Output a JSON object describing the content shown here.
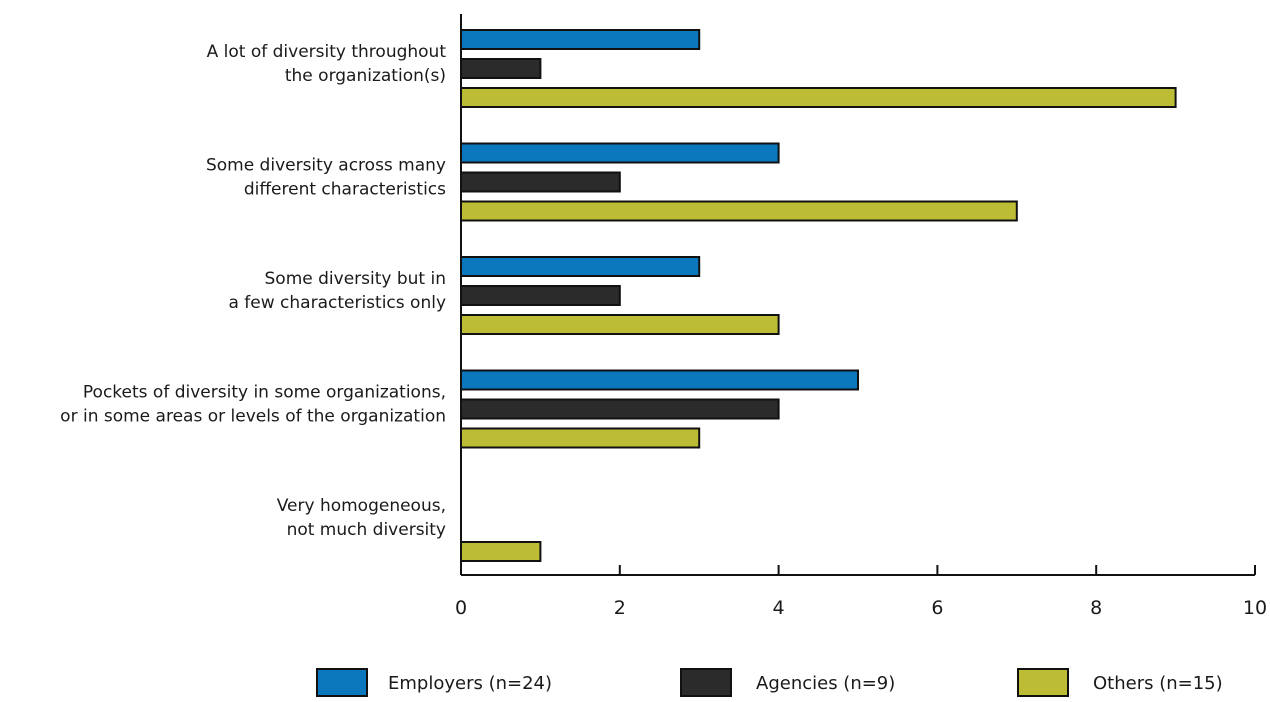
{
  "chart_data": {
    "type": "bar",
    "orientation": "horizontal",
    "categories": [
      [
        "A lot of diversity throughout",
        "the organization(s)"
      ],
      [
        "Some diversity across many",
        "different characteristics"
      ],
      [
        "Some diversity but in",
        "a few characteristics only"
      ],
      [
        "Pockets of diversity in some organizations,",
        "or in some areas or levels of the organization"
      ],
      [
        "Very homogeneous,",
        "not much diversity"
      ]
    ],
    "series": [
      {
        "name": "Employers (n=24)",
        "color": "#0b77bd",
        "values": [
          3,
          4,
          3,
          5,
          0
        ]
      },
      {
        "name": "Agencies (n=9)",
        "color": "#2b2b2b",
        "values": [
          1,
          2,
          2,
          4,
          0
        ]
      },
      {
        "name": "Others (n=15)",
        "color": "#bcbc35",
        "values": [
          9,
          7,
          4,
          3,
          1
        ]
      }
    ],
    "xlim": [
      0,
      10
    ],
    "xticks": [
      "0",
      "2",
      "4",
      "6",
      "8",
      "10"
    ],
    "xlabel": "",
    "ylabel": "",
    "title": "",
    "grid": false,
    "legend_position": "bottom"
  }
}
